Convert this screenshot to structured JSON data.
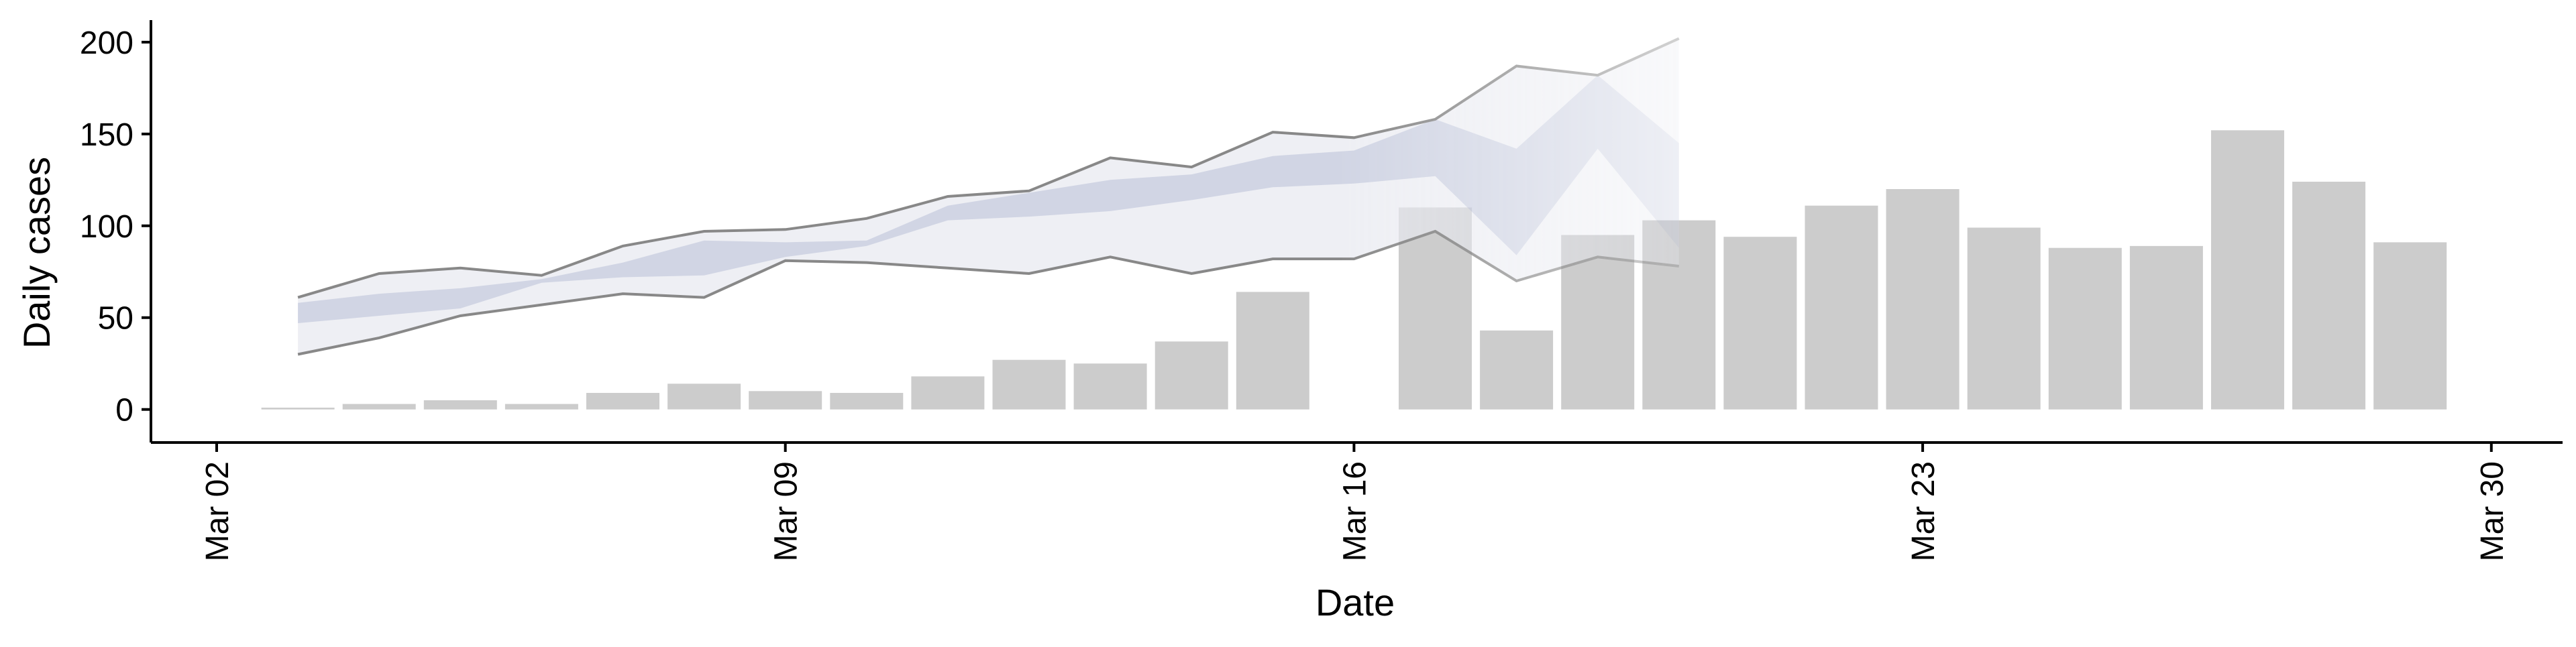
{
  "chart_data": {
    "type": "bar",
    "title": "",
    "xlabel": "Date",
    "ylabel": "Daily cases",
    "ylim": [
      -18,
      212
    ],
    "xlim": [
      "2020-03-02",
      "2020-03-30"
    ],
    "x_ticks": [
      "Mar 02",
      "Mar 09",
      "Mar 16",
      "Mar 23",
      "Mar 30"
    ],
    "y_ticks": [
      0,
      50,
      100,
      150,
      200
    ],
    "grid": false,
    "legend": "none",
    "bars": {
      "dates": [
        "2020-03-03",
        "2020-03-04",
        "2020-03-05",
        "2020-03-06",
        "2020-03-07",
        "2020-03-08",
        "2020-03-09",
        "2020-03-10",
        "2020-03-11",
        "2020-03-12",
        "2020-03-13",
        "2020-03-14",
        "2020-03-15",
        "2020-03-16",
        "2020-03-17",
        "2020-03-18",
        "2020-03-19",
        "2020-03-20",
        "2020-03-21",
        "2020-03-22",
        "2020-03-23",
        "2020-03-24",
        "2020-03-25",
        "2020-03-26",
        "2020-03-27",
        "2020-03-28",
        "2020-03-29"
      ],
      "values": [
        1,
        3,
        5,
        3,
        9,
        14,
        10,
        9,
        18,
        27,
        25,
        37,
        64,
        0,
        110,
        43,
        95,
        103,
        94,
        111,
        120,
        99,
        88,
        89,
        152,
        124,
        91
      ]
    },
    "band": {
      "dates": [
        "2020-03-03",
        "2020-03-04",
        "2020-03-05",
        "2020-03-06",
        "2020-03-07",
        "2020-03-08",
        "2020-03-09",
        "2020-03-10",
        "2020-03-11",
        "2020-03-12",
        "2020-03-13",
        "2020-03-14",
        "2020-03-15",
        "2020-03-16",
        "2020-03-17",
        "2020-03-18",
        "2020-03-19",
        "2020-03-20"
      ],
      "upper": [
        61,
        74,
        77,
        73,
        89,
        97,
        98,
        104,
        116,
        119,
        137,
        132,
        151,
        148,
        158,
        187,
        182,
        202
      ],
      "lower": [
        30,
        39,
        51,
        57,
        63,
        61,
        81,
        80,
        77,
        74,
        83,
        74,
        82,
        82,
        97,
        70,
        83,
        78
      ],
      "inner_upper": [
        58,
        63,
        66,
        71,
        80,
        92,
        91,
        92,
        111,
        118,
        125,
        128,
        138,
        141,
        158,
        142,
        182,
        145
      ],
      "inner_lower": [
        47,
        51,
        55,
        69,
        72,
        73,
        83,
        89,
        103,
        105,
        108,
        114,
        121,
        123,
        127,
        84,
        142,
        88
      ]
    },
    "colors": {
      "bar": "#cccccc",
      "band_outer": "#e8e9f0",
      "band_inner": "#c2c7db",
      "band_line": "#888888",
      "axis": "#000000"
    }
  }
}
